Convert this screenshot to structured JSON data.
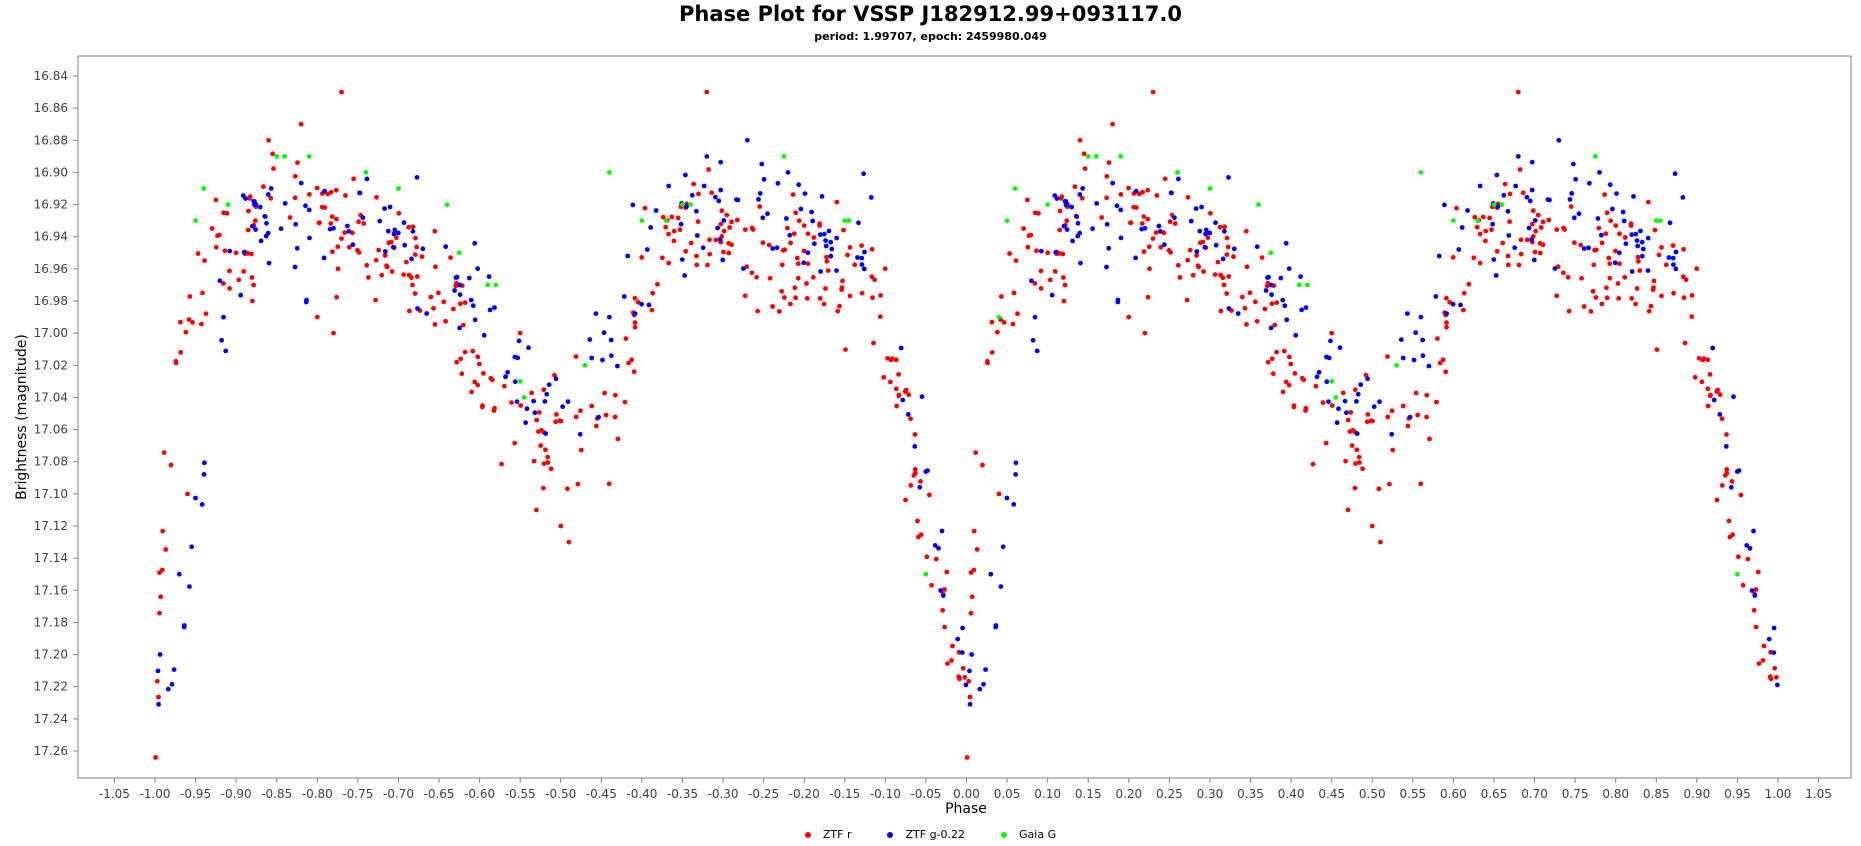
{
  "chart_data": {
    "type": "scatter",
    "title": "Phase Plot for VSSP J182912.99+093117.0",
    "subtitle": "period: 1.99707, epoch: 2459980.049",
    "xlabel": "Phase",
    "ylabel": "Brightness (magnitude)",
    "xlim": [
      -1.1,
      1.1
    ],
    "ylim": [
      16.82,
      17.27
    ],
    "y_inverted": true,
    "x_ticks": [
      "-1.05",
      "-1.00",
      "-0.95",
      "-0.90",
      "-0.85",
      "-0.80",
      "-0.75",
      "-0.70",
      "-0.65",
      "-0.60",
      "-0.55",
      "-0.50",
      "-0.45",
      "-0.40",
      "-0.35",
      "-0.30",
      "-0.25",
      "-0.20",
      "-0.15",
      "-0.10",
      "-0.05",
      "0.00",
      "0.05",
      "0.10",
      "0.15",
      "0.20",
      "0.25",
      "0.30",
      "0.35",
      "0.40",
      "0.45",
      "0.50",
      "0.55",
      "0.60",
      "0.65",
      "0.70",
      "0.75",
      "0.80",
      "0.85",
      "0.90",
      "0.95",
      "1.00",
      "1.05"
    ],
    "y_ticks": [
      "16.84",
      "16.86",
      "16.88",
      "16.90",
      "16.92",
      "16.94",
      "16.96",
      "16.98",
      "17.00",
      "17.02",
      "17.04",
      "17.06",
      "17.08",
      "17.10",
      "17.12",
      "17.14",
      "17.16",
      "17.18",
      "17.20",
      "17.22",
      "17.24",
      "17.26"
    ],
    "grid": false,
    "legend_position": "bottom",
    "series": [
      {
        "name": "ZTF r",
        "color": "#ff0000",
        "shape": [
          [
            0.0,
            17.22
          ],
          [
            0.03,
            17.0
          ],
          [
            0.08,
            16.94
          ],
          [
            0.1,
            16.95
          ],
          [
            0.12,
            16.93
          ],
          [
            0.14,
            16.91
          ],
          [
            0.18,
            16.92
          ],
          [
            0.22,
            16.93
          ],
          [
            0.25,
            16.93
          ],
          [
            0.3,
            16.95
          ],
          [
            0.32,
            16.96
          ],
          [
            0.34,
            16.98
          ],
          [
            0.36,
            16.98
          ],
          [
            0.38,
            17.0
          ],
          [
            0.4,
            17.02
          ],
          [
            0.42,
            17.04
          ],
          [
            0.45,
            17.05
          ],
          [
            0.48,
            17.07
          ],
          [
            0.5,
            17.07
          ],
          [
            0.52,
            17.06
          ],
          [
            0.56,
            17.06
          ],
          [
            0.6,
            16.98
          ],
          [
            0.62,
            16.95
          ],
          [
            0.64,
            16.95
          ],
          [
            0.65,
            16.94
          ],
          [
            0.68,
            16.93
          ],
          [
            0.7,
            16.94
          ],
          [
            0.72,
            16.94
          ],
          [
            0.75,
            16.95
          ],
          [
            0.8,
            16.96
          ],
          [
            0.85,
            16.96
          ],
          [
            0.88,
            16.97
          ],
          [
            0.9,
            17.0
          ],
          [
            0.92,
            17.04
          ],
          [
            0.94,
            17.09
          ],
          [
            0.96,
            17.15
          ],
          [
            0.98,
            17.2
          ],
          [
            1.0,
            17.22
          ]
        ],
        "scatter": 0.018,
        "n_points": 360,
        "outliers": [
          [
            0.23,
            16.85
          ],
          [
            0.18,
            16.87
          ],
          [
            0.68,
            16.85
          ],
          [
            0.12,
            16.98
          ],
          [
            0.22,
            17.0
          ],
          [
            0.45,
            17.0
          ],
          [
            0.51,
            17.13
          ],
          [
            0.47,
            17.11
          ],
          [
            0.5,
            17.12
          ],
          [
            0.04,
            17.1
          ],
          [
            0.14,
            16.88
          ],
          [
            0.1,
            16.95
          ],
          [
            0.2,
            16.99
          ]
        ]
      },
      {
        "name": "ZTF g-0.22",
        "color": "#0000ff",
        "shape": [
          [
            0.0,
            17.21
          ],
          [
            0.03,
            17.2
          ],
          [
            0.1,
            16.92
          ],
          [
            0.15,
            16.93
          ],
          [
            0.2,
            16.94
          ],
          [
            0.25,
            16.92
          ],
          [
            0.36,
            16.96
          ],
          [
            0.38,
            16.97
          ],
          [
            0.42,
            16.99
          ],
          [
            0.45,
            17.02
          ],
          [
            0.5,
            17.05
          ],
          [
            0.53,
            17.03
          ],
          [
            0.56,
            17.01
          ],
          [
            0.62,
            16.93
          ],
          [
            0.65,
            16.93
          ],
          [
            0.7,
            16.92
          ],
          [
            0.75,
            16.92
          ],
          [
            0.88,
            16.95
          ],
          [
            0.92,
            17.01
          ],
          [
            0.96,
            17.13
          ],
          [
            1.0,
            17.21
          ]
        ],
        "scatter": 0.018,
        "n_points": 210,
        "outliers": [
          [
            0.73,
            16.88
          ],
          [
            0.68,
            16.89
          ],
          [
            0.78,
            16.9
          ],
          [
            0.03,
            17.15
          ],
          [
            0.56,
            16.99
          ]
        ]
      },
      {
        "name": "Gaia G",
        "color": "#00ff00",
        "points": [
          [
            0.05,
            16.93
          ],
          [
            0.06,
            16.91
          ],
          [
            -0.95,
            16.93
          ],
          [
            -0.94,
            16.91
          ],
          [
            0.04,
            16.99
          ],
          [
            -0.91,
            16.92
          ],
          [
            -0.85,
            16.89
          ],
          [
            -0.84,
            16.89
          ],
          [
            -0.81,
            16.89
          ],
          [
            -0.74,
            16.9
          ],
          [
            -0.7,
            16.91
          ],
          [
            -0.64,
            16.92
          ],
          [
            -0.625,
            16.95
          ],
          [
            -0.59,
            16.97
          ],
          [
            -0.58,
            16.97
          ],
          [
            -0.55,
            17.03
          ],
          [
            -0.545,
            17.04
          ],
          [
            -0.47,
            17.02
          ],
          [
            -0.44,
            16.9
          ],
          [
            -0.4,
            16.93
          ],
          [
            -0.37,
            16.93
          ],
          [
            -0.35,
            16.92
          ],
          [
            -0.34,
            16.92
          ],
          [
            -0.225,
            16.89
          ],
          [
            -0.15,
            16.93
          ],
          [
            -0.145,
            16.93
          ],
          [
            -0.05,
            17.15
          ],
          [
            0.1,
            16.92
          ],
          [
            0.15,
            16.89
          ],
          [
            0.16,
            16.89
          ],
          [
            0.19,
            16.89
          ],
          [
            0.26,
            16.9
          ],
          [
            0.3,
            16.91
          ],
          [
            0.36,
            16.92
          ],
          [
            0.375,
            16.95
          ],
          [
            0.41,
            16.97
          ],
          [
            0.42,
            16.97
          ],
          [
            0.45,
            17.03
          ],
          [
            0.455,
            17.04
          ],
          [
            0.53,
            17.02
          ],
          [
            0.56,
            16.9
          ],
          [
            0.6,
            16.93
          ],
          [
            0.63,
            16.93
          ],
          [
            0.65,
            16.92
          ],
          [
            0.66,
            16.92
          ],
          [
            0.775,
            16.89
          ],
          [
            0.85,
            16.93
          ],
          [
            0.855,
            16.93
          ],
          [
            0.95,
            17.15
          ]
        ]
      }
    ]
  }
}
